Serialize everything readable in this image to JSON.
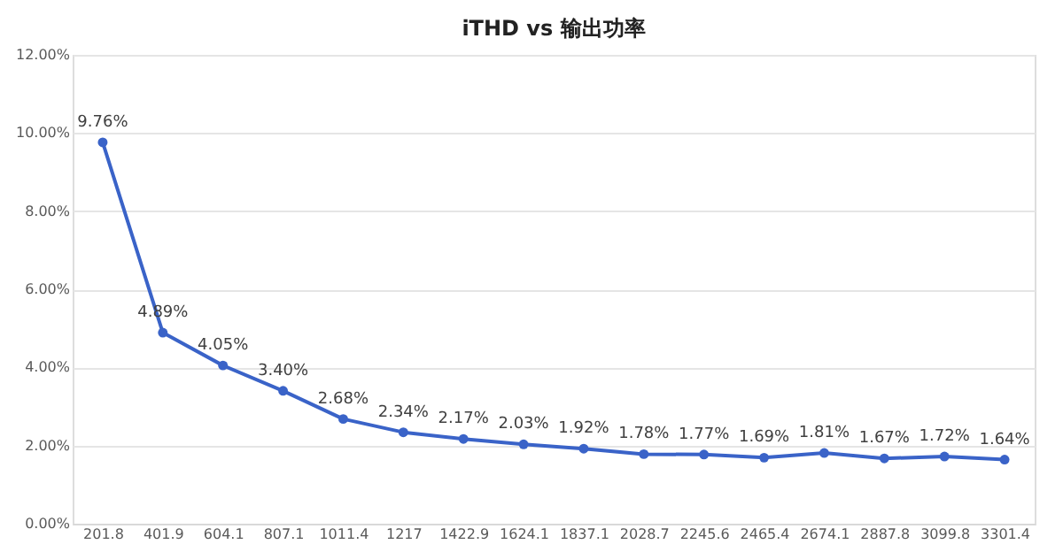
{
  "chart_data": {
    "type": "line",
    "title": "iTHD vs 输出功率",
    "categories": [
      "201.8",
      "401.9",
      "604.1",
      "807.1",
      "1011.4",
      "1217",
      "1422.9",
      "1624.1",
      "1837.1",
      "2028.7",
      "2245.6",
      "2465.4",
      "2674.1",
      "2887.8",
      "3099.8",
      "3301.4"
    ],
    "series": [
      {
        "color": "#3a63c8",
        "values": [
          9.76,
          4.89,
          4.05,
          3.4,
          2.68,
          2.34,
          2.17,
          2.03,
          1.92,
          1.78,
          1.77,
          1.69,
          1.81,
          1.67,
          1.72,
          1.64
        ],
        "value_labels": [
          "9.76%",
          "4.89%",
          "4.05%",
          "3.40%",
          "2.68%",
          "2.34%",
          "2.17%",
          "2.03%",
          "1.92%",
          "1.78%",
          "1.77%",
          "1.69%",
          "1.81%",
          "1.67%",
          "1.72%",
          "1.64%"
        ]
      }
    ],
    "ylim": [
      0,
      12
    ],
    "yticks": [
      {
        "value": 0,
        "label": "0.00%"
      },
      {
        "value": 2,
        "label": "2.00%"
      },
      {
        "value": 4,
        "label": "4.00%"
      },
      {
        "value": 6,
        "label": "6.00%"
      },
      {
        "value": 8,
        "label": "8.00%"
      },
      {
        "value": 10,
        "label": "10.00%"
      },
      {
        "value": 12,
        "label": "12.00%"
      }
    ],
    "grid": "y",
    "marker": "circle",
    "line_style": "solid"
  }
}
